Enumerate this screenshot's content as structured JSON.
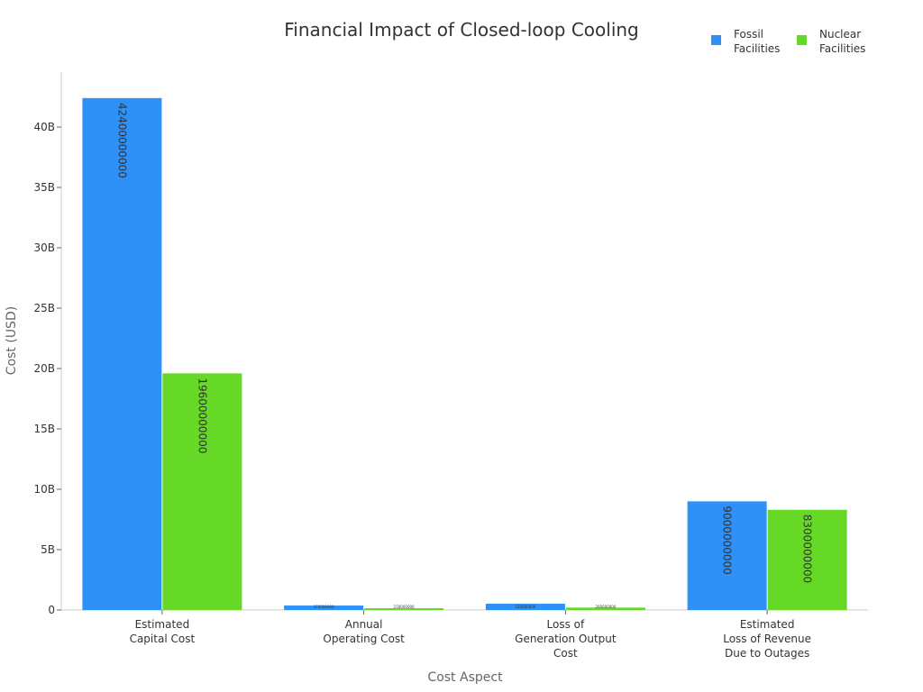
{
  "chart_data": {
    "type": "bar",
    "title": "Financial Impact of Closed-loop Cooling",
    "xlabel": "Cost Aspect",
    "ylabel": "Cost (USD)",
    "ylim": [
      0,
      44500000000
    ],
    "yticks": [
      0,
      5000000000,
      10000000000,
      15000000000,
      20000000000,
      25000000000,
      30000000000,
      35000000000,
      40000000000
    ],
    "ytick_labels": [
      "0",
      "5B",
      "10B",
      "15B",
      "20B",
      "25B",
      "30B",
      "35B",
      "40B"
    ],
    "categories": [
      [
        "Estimated",
        "Capital Cost"
      ],
      [
        "Annual",
        "Operating Cost"
      ],
      [
        "Loss of",
        "Generation Output",
        "Cost"
      ],
      [
        "Estimated",
        "Loss of Revenue",
        "Due to Outages"
      ]
    ],
    "series": [
      {
        "name": "Fossil Facilities",
        "legend_lines": [
          "Fossil",
          "Facilities"
        ],
        "color": "#2e91f7",
        "values": [
          42400000000,
          370000000,
          520000000,
          9000000000
        ]
      },
      {
        "name": "Nuclear Facilities",
        "legend_lines": [
          "Nuclear",
          "Facilities"
        ],
        "color": "#66d927",
        "values": [
          19600000000,
          150000000,
          200000000,
          8300000000
        ]
      }
    ],
    "legend": "top-right",
    "grid": false
  }
}
